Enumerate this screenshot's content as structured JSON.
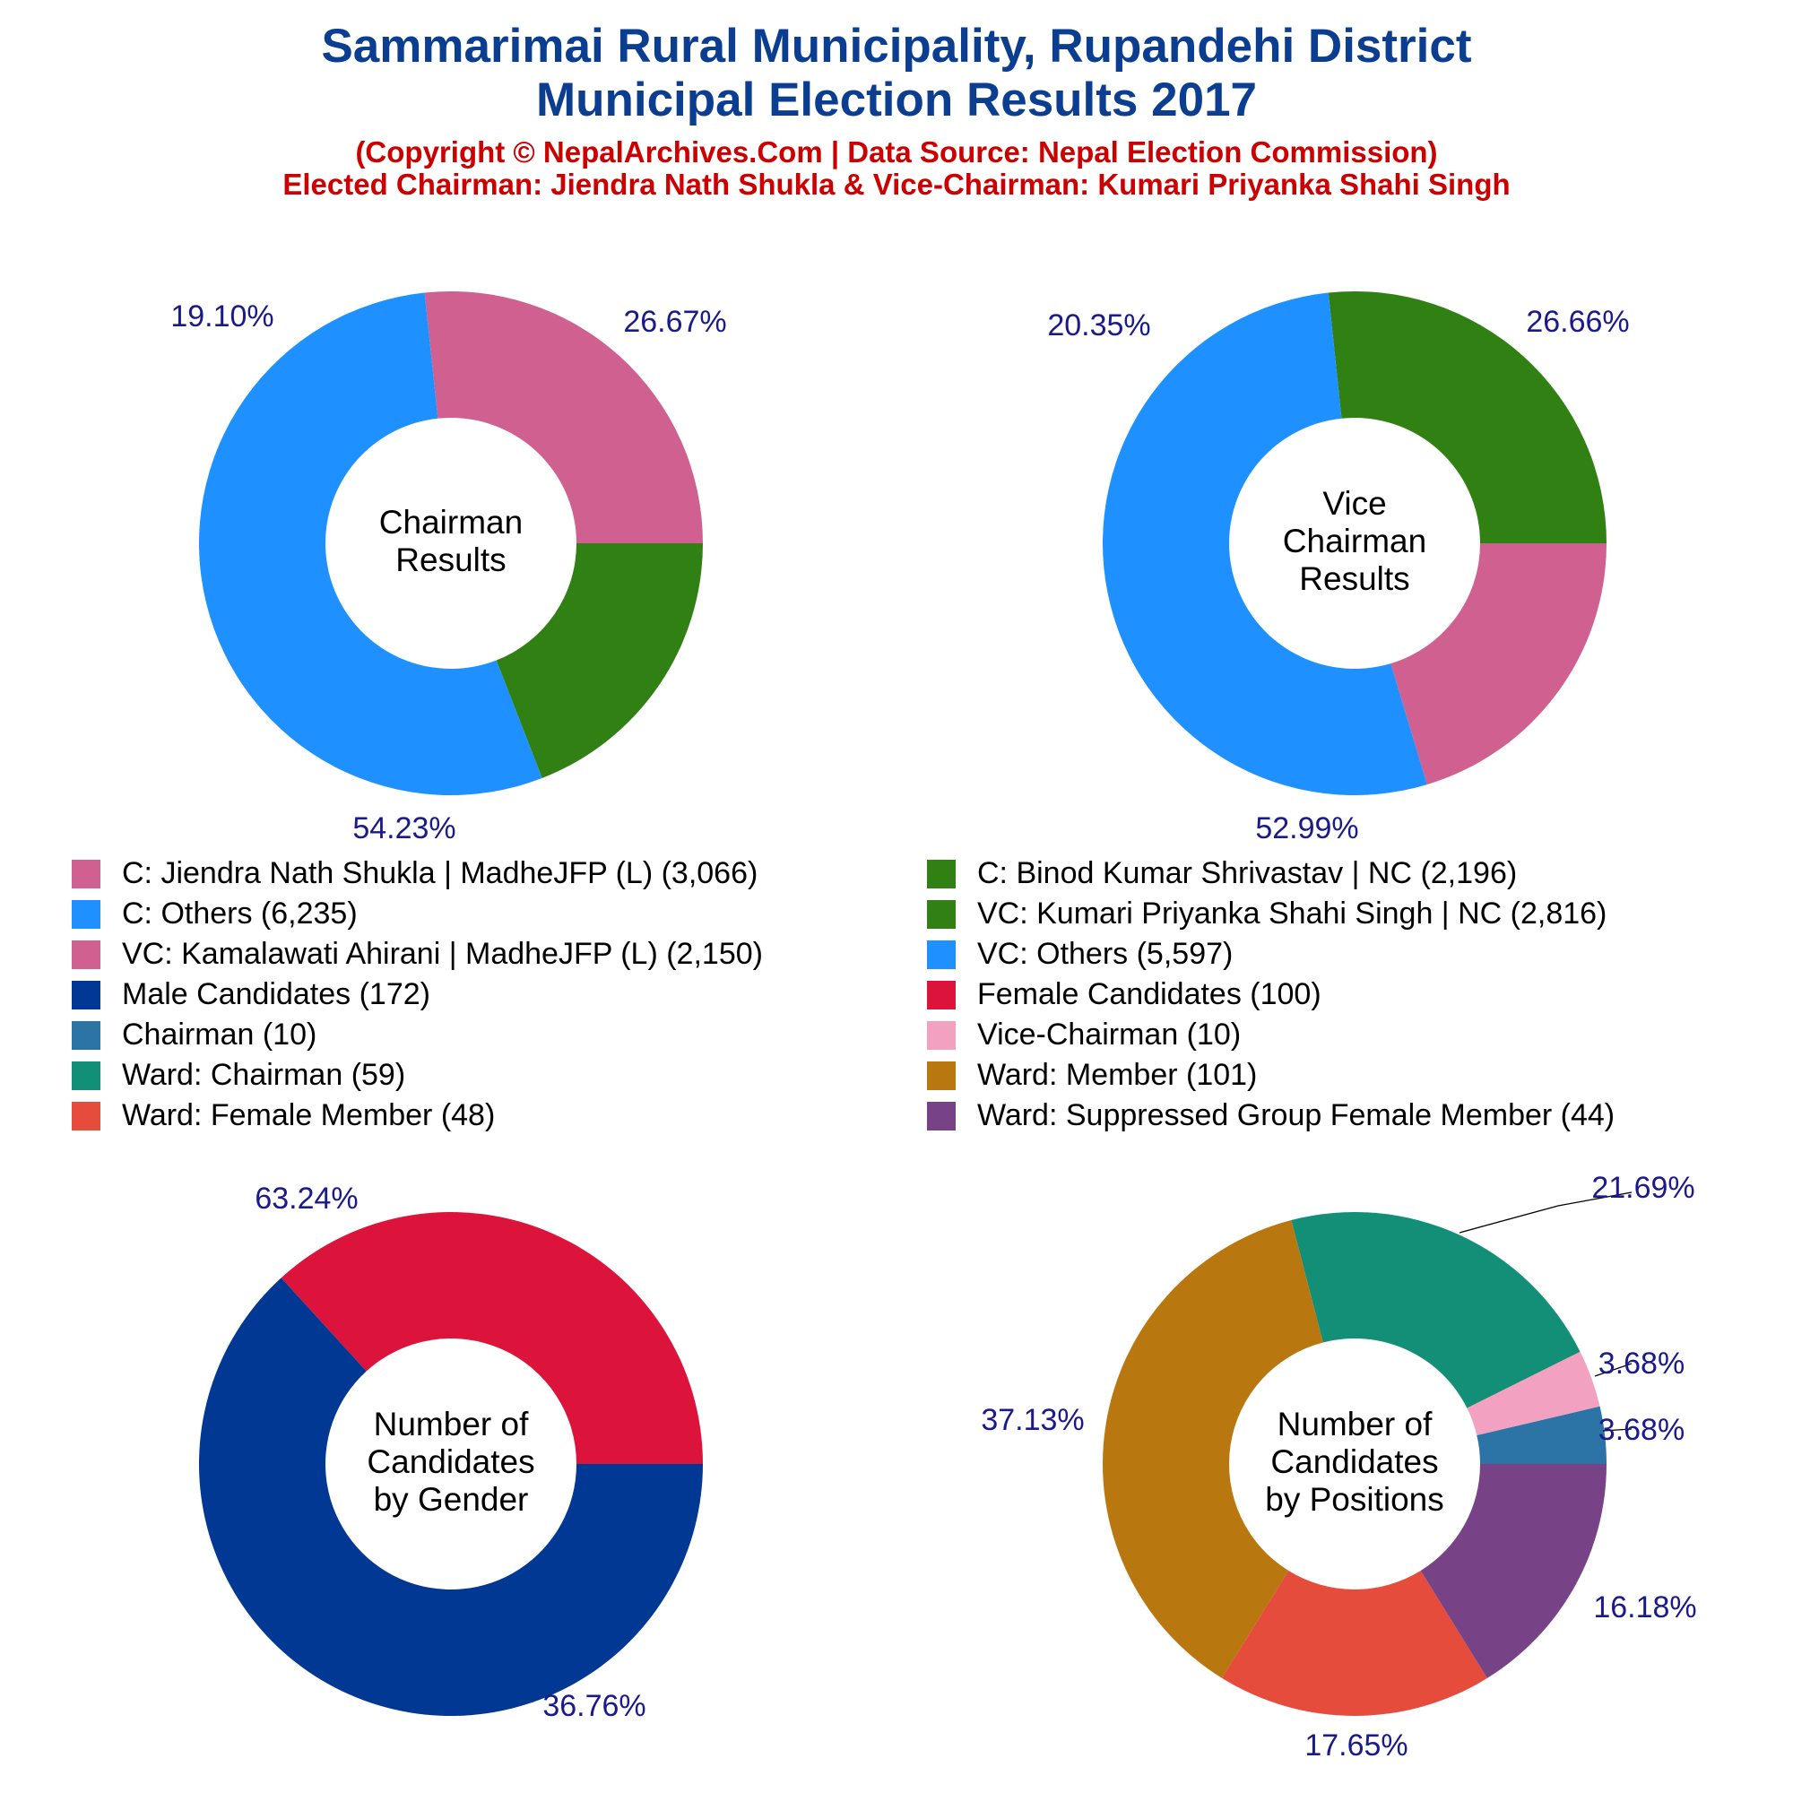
{
  "title_line1": "Sammarimai Rural Municipality, Rupandehi District",
  "title_line2": "Municipal Election Results 2017",
  "subtitle_line1": "(Copyright © NepalArchives.Com | Data Source: Nepal Election Commission)",
  "subtitle_line2": "Elected Chairman: Jiendra Nath Shukla & Vice-Chairman: Kumari Priyanka Shahi Singh",
  "legend": [
    {
      "label": "C: Jiendra Nath Shukla | MadheJFP (L) (3,066)",
      "color": "#d06090"
    },
    {
      "label": "C: Binod Kumar Shrivastav | NC (2,196)",
      "color": "#308014"
    },
    {
      "label": "C: Others (6,235)",
      "color": "#1e90ff"
    },
    {
      "label": "VC: Kumari Priyanka Shahi Singh | NC (2,816)",
      "color": "#308014"
    },
    {
      "label": "VC: Kamalawati Ahirani | MadheJFP (L) (2,150)",
      "color": "#d06090"
    },
    {
      "label": "VC: Others (5,597)",
      "color": "#1e90ff"
    },
    {
      "label": "Male Candidates (172)",
      "color": "#003893"
    },
    {
      "label": "Female Candidates (100)",
      "color": "#dc143c"
    },
    {
      "label": "Chairman (10)",
      "color": "#2c73a6"
    },
    {
      "label": "Vice-Chairman (10)",
      "color": "#f2a2c0"
    },
    {
      "label": "Ward: Chairman (59)",
      "color": "#138f78"
    },
    {
      "label": "Ward: Member (101)",
      "color": "#b8770f"
    },
    {
      "label": "Ward: Female Member (48)",
      "color": "#e64c3c"
    },
    {
      "label": "Ward: Suppressed Group Female Member (44)",
      "color": "#784386"
    }
  ],
  "chart_data": [
    {
      "type": "pie",
      "variant": "donut",
      "center_label": [
        "Chairman",
        "Results"
      ],
      "slices": [
        {
          "name": "C: Jiendra Nath Shukla | MadheJFP (L)",
          "value": 3066,
          "pct_label": "26.67%",
          "color": "#d06090"
        },
        {
          "name": "C: Others",
          "value": 6235,
          "pct_label": "54.23%",
          "color": "#1e90ff"
        },
        {
          "name": "C: Binod Kumar Shrivastav | NC",
          "value": 2196,
          "pct_label": "19.10%",
          "color": "#308014"
        }
      ]
    },
    {
      "type": "pie",
      "variant": "donut",
      "center_label": [
        "Vice",
        "Chairman",
        "Results"
      ],
      "slices": [
        {
          "name": "VC: Kumari Priyanka Shahi Singh | NC",
          "value": 2816,
          "pct_label": "26.66%",
          "color": "#308014"
        },
        {
          "name": "VC: Others",
          "value": 5597,
          "pct_label": "52.99%",
          "color": "#1e90ff"
        },
        {
          "name": "VC: Kamalawati Ahirani | MadheJFP (L)",
          "value": 2150,
          "pct_label": "20.35%",
          "color": "#d06090"
        }
      ]
    },
    {
      "type": "pie",
      "variant": "donut",
      "center_label": [
        "Number of",
        "Candidates",
        "by Gender"
      ],
      "slices": [
        {
          "name": "Female Candidates",
          "value": 100,
          "pct_label": "36.76%",
          "color": "#dc143c"
        },
        {
          "name": "Male Candidates",
          "value": 172,
          "pct_label": "63.24%",
          "color": "#003893"
        }
      ]
    },
    {
      "type": "pie",
      "variant": "donut",
      "center_label": [
        "Number of",
        "Candidates",
        "by Positions"
      ],
      "slices": [
        {
          "name": "Chairman",
          "value": 10,
          "pct_label": "3.68%",
          "color": "#2c73a6"
        },
        {
          "name": "Vice-Chairman",
          "value": 10,
          "pct_label": "3.68%",
          "color": "#f2a2c0"
        },
        {
          "name": "Ward: Chairman",
          "value": 59,
          "pct_label": "21.69%",
          "color": "#138f78"
        },
        {
          "name": "Ward: Member",
          "value": 101,
          "pct_label": "37.13%",
          "color": "#b8770f"
        },
        {
          "name": "Ward: Female Member",
          "value": 48,
          "pct_label": "17.65%",
          "color": "#e64c3c"
        },
        {
          "name": "Ward: Suppressed Group Female Member",
          "value": 44,
          "pct_label": "16.18%",
          "color": "#784386"
        }
      ]
    }
  ]
}
